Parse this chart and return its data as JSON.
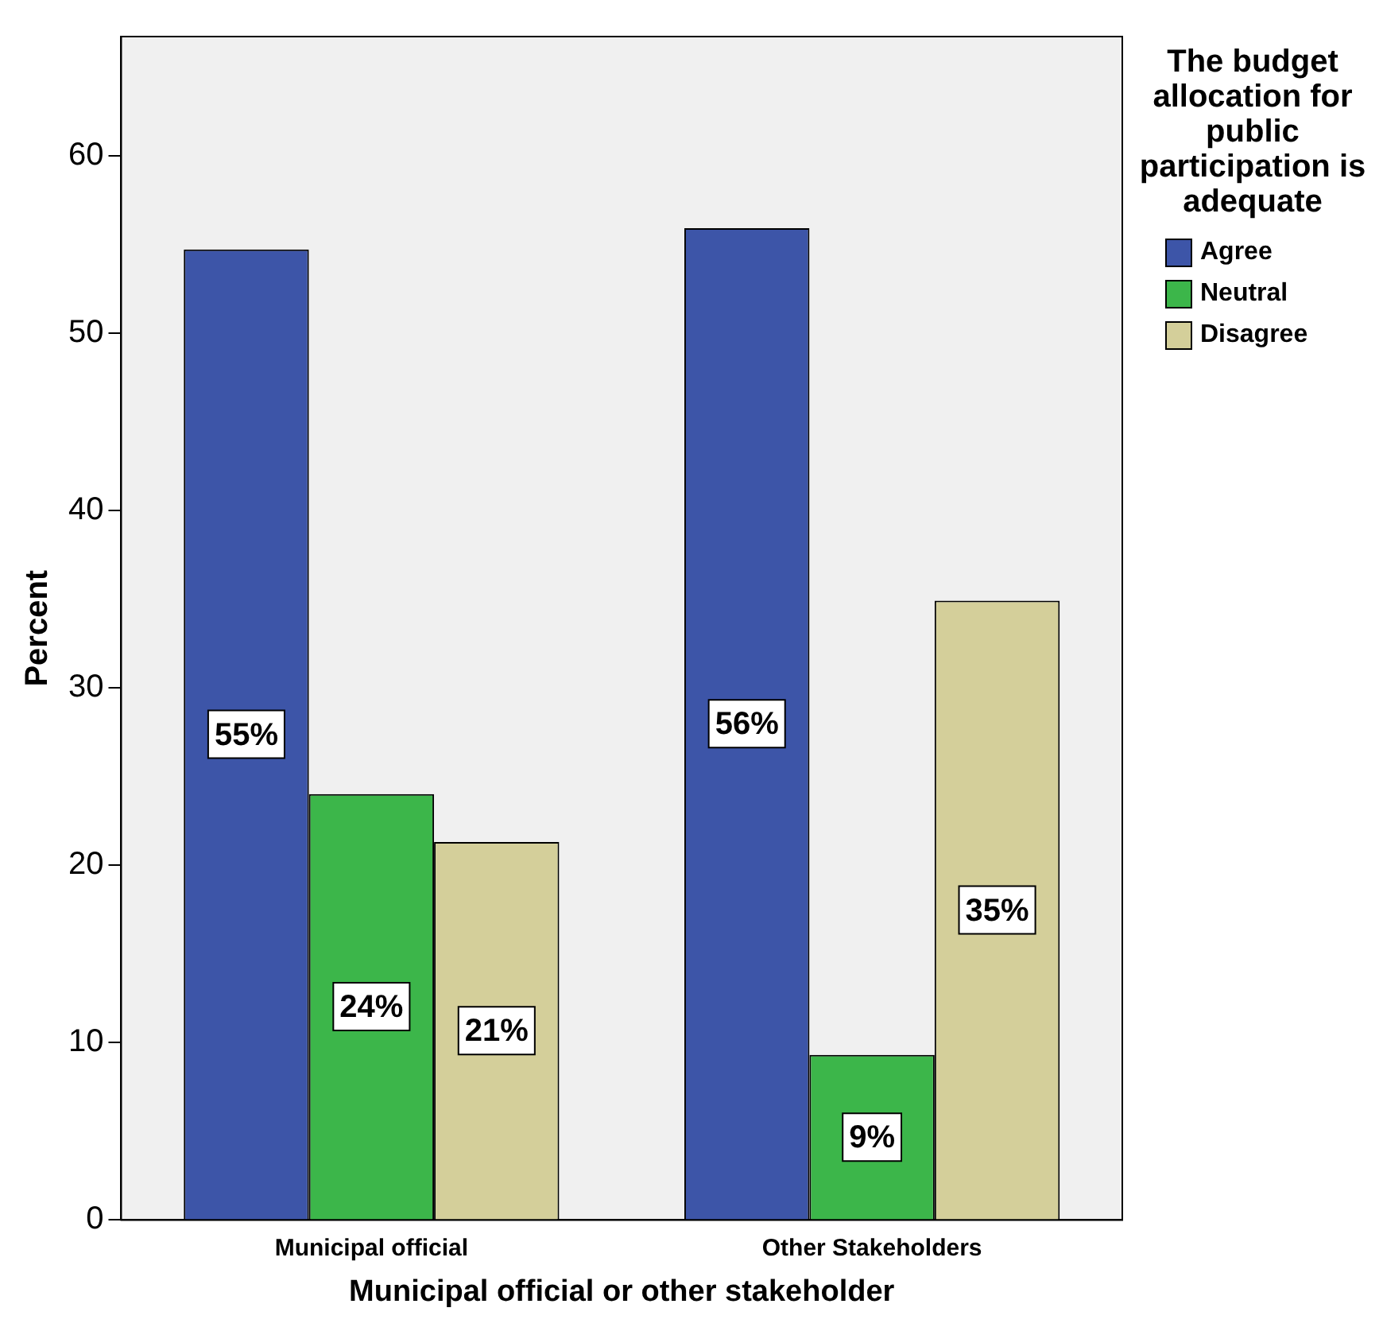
{
  "chart_data": {
    "type": "bar",
    "xlabel": "Municipal official or other stakeholder",
    "ylabel": "Percent",
    "legend_title": "The budget allocation for public participation is adequate",
    "categories": [
      "Municipal official",
      "Other Stakeholders"
    ],
    "series": [
      {
        "name": "Agree",
        "color": "#3d55a8",
        "values": [
          54.7,
          55.9
        ],
        "value_labels": [
          "55%",
          "56%"
        ]
      },
      {
        "name": "Neutral",
        "color": "#3cb64a",
        "values": [
          24.0,
          9.3
        ],
        "value_labels": [
          "24%",
          "9%"
        ]
      },
      {
        "name": "Disagree",
        "color": "#d4cf9a",
        "values": [
          21.3,
          34.9
        ],
        "value_labels": [
          "21%",
          "35%"
        ]
      }
    ],
    "ylim": [
      0,
      66.7
    ],
    "yticks": [
      0,
      10,
      20,
      30,
      40,
      50,
      60
    ],
    "grid": false,
    "legend": "top right"
  }
}
